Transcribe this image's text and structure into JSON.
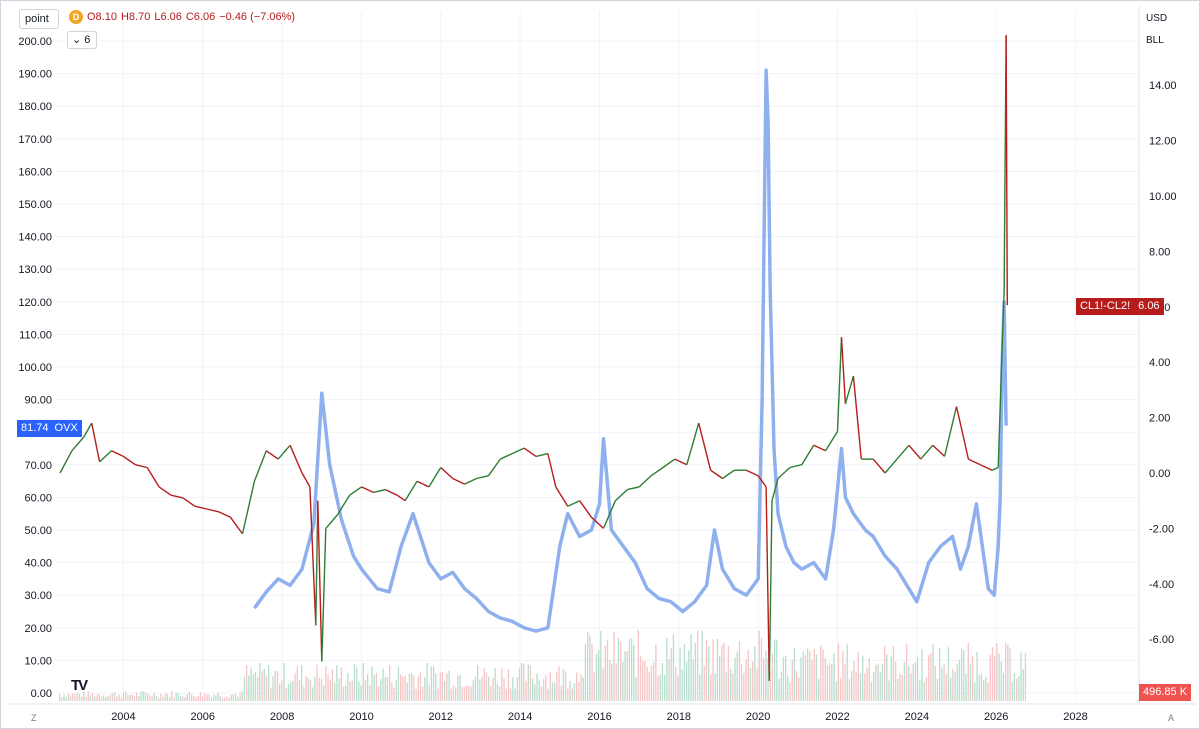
{
  "header": {
    "unit_label": "point",
    "interval_badge": "D",
    "open": "O8.10",
    "high": "H8.70",
    "low": "L6.06",
    "close": "C6.06",
    "change": "−0.46 (−7.06%)",
    "collapse_label": "6"
  },
  "right_scale": {
    "currency": "USD",
    "unit": "BLL"
  },
  "tags": {
    "ovx_value": "81.74",
    "ovx_name": "OVX",
    "spread_name": "CL1!-CL2!",
    "spread_value": "6.06",
    "volume_value": "496.85 K"
  },
  "logo_text": "TV",
  "corner_left": "Z",
  "corner_right": "A",
  "colors": {
    "ovx": "#8fb0ee",
    "spread_up": "#2e7d32",
    "spread_down": "#b71c1c",
    "vol_up": "#a5d6c3",
    "vol_down": "#f4b6b6",
    "grid": "#f0f3fa"
  },
  "chart_data": {
    "type": "line",
    "x_range": [
      2002.3,
      2029.6
    ],
    "x_ticks": [
      "2004",
      "2006",
      "2008",
      "2010",
      "2012",
      "2014",
      "2016",
      "2018",
      "2020",
      "2022",
      "2024",
      "2026",
      "2028"
    ],
    "x_tick_values": [
      2004,
      2006,
      2008,
      2010,
      2012,
      2014,
      2016,
      2018,
      2020,
      2022,
      2024,
      2026,
      2028
    ],
    "left_axis": {
      "ticks": [
        "0.00",
        "10.00",
        "20.00",
        "30.00",
        "40.00",
        "50.00",
        "60.00",
        "70.00",
        "80.00",
        "90.00",
        "100.00",
        "110.00",
        "120.00",
        "130.00",
        "140.00",
        "150.00",
        "160.00",
        "170.00",
        "180.00",
        "190.00",
        "200.00"
      ],
      "tick_values": [
        0,
        10,
        20,
        30,
        40,
        50,
        60,
        70,
        80,
        90,
        100,
        110,
        120,
        130,
        140,
        150,
        160,
        170,
        180,
        190,
        200
      ]
    },
    "right_axis": {
      "ticks": [
        "-6.00",
        "-4.00",
        "-2.00",
        "0.00",
        "2.00",
        "4.00",
        "6.00",
        "8.00",
        "10.00",
        "12.00",
        "14.00"
      ],
      "tick_values": [
        -6,
        -4,
        -2,
        0,
        2,
        4,
        6,
        8,
        10,
        12,
        14
      ]
    },
    "series": [
      {
        "name": "OVX",
        "axis": "left",
        "x": [
          2007.3,
          2007.6,
          2007.9,
          2008.2,
          2008.5,
          2008.8,
          2009.0,
          2009.2,
          2009.5,
          2009.8,
          2010.0,
          2010.4,
          2010.7,
          2011.0,
          2011.3,
          2011.7,
          2012.0,
          2012.3,
          2012.6,
          2012.9,
          2013.2,
          2013.5,
          2013.8,
          2014.1,
          2014.4,
          2014.7,
          2015.0,
          2015.2,
          2015.5,
          2015.8,
          2016.0,
          2016.1,
          2016.3,
          2016.6,
          2016.9,
          2017.2,
          2017.5,
          2017.8,
          2018.1,
          2018.4,
          2018.7,
          2018.9,
          2019.1,
          2019.4,
          2019.7,
          2020.0,
          2020.1,
          2020.2,
          2020.25,
          2020.3,
          2020.4,
          2020.5,
          2020.7,
          2020.9,
          2021.1,
          2021.4,
          2021.7,
          2021.9,
          2022.1,
          2022.2,
          2022.4,
          2022.7,
          2022.9,
          2023.2,
          2023.5,
          2023.8,
          2024.0,
          2024.3,
          2024.6,
          2024.9,
          2025.1,
          2025.3,
          2025.5,
          2025.8,
          2025.95,
          2026.05,
          2026.1,
          2026.15,
          2026.2,
          2026.25
        ],
        "values": [
          26,
          31,
          35,
          33,
          38,
          52,
          92,
          70,
          53,
          42,
          38,
          32,
          31,
          45,
          55,
          40,
          35,
          37,
          32,
          29,
          25,
          23,
          22,
          20,
          19,
          20,
          45,
          55,
          48,
          50,
          58,
          78,
          50,
          45,
          40,
          32,
          29,
          28,
          25,
          28,
          33,
          50,
          38,
          32,
          30,
          35,
          90,
          191,
          175,
          125,
          75,
          55,
          45,
          40,
          38,
          40,
          35,
          50,
          75,
          60,
          55,
          50,
          48,
          42,
          38,
          32,
          28,
          40,
          45,
          48,
          38,
          45,
          58,
          32,
          30,
          45,
          60,
          100,
          120,
          82
        ]
      },
      {
        "name": "CL1!-CL2!",
        "axis": "right",
        "x": [
          2002.4,
          2002.7,
          2003.0,
          2003.2,
          2003.4,
          2003.7,
          2004.0,
          2004.3,
          2004.6,
          2004.9,
          2005.2,
          2005.5,
          2005.8,
          2006.1,
          2006.4,
          2006.7,
          2007.0,
          2007.3,
          2007.6,
          2007.9,
          2008.2,
          2008.5,
          2008.7,
          2008.85,
          2008.9,
          2009.0,
          2009.1,
          2009.4,
          2009.7,
          2010.0,
          2010.3,
          2010.6,
          2010.9,
          2011.1,
          2011.4,
          2011.7,
          2012.0,
          2012.3,
          2012.6,
          2012.9,
          2013.2,
          2013.5,
          2013.8,
          2014.1,
          2014.4,
          2014.7,
          2014.9,
          2015.2,
          2015.5,
          2015.8,
          2016.1,
          2016.4,
          2016.7,
          2017.0,
          2017.3,
          2017.6,
          2017.9,
          2018.2,
          2018.5,
          2018.8,
          2019.1,
          2019.4,
          2019.7,
          2020.0,
          2020.2,
          2020.28,
          2020.35,
          2020.5,
          2020.8,
          2021.1,
          2021.4,
          2021.7,
          2022.0,
          2022.1,
          2022.2,
          2022.4,
          2022.6,
          2022.9,
          2023.2,
          2023.5,
          2023.8,
          2024.1,
          2024.4,
          2024.7,
          2025.0,
          2025.3,
          2025.6,
          2025.9,
          2026.05,
          2026.15,
          2026.2,
          2026.25,
          2026.28
        ],
        "values": [
          0,
          0.8,
          1.3,
          1.8,
          0.4,
          0.8,
          0.6,
          0.3,
          0.2,
          -0.5,
          -0.8,
          -0.9,
          -1.2,
          -1.3,
          -1.4,
          -1.6,
          -2.2,
          -0.3,
          0.8,
          0.5,
          1.0,
          0,
          -0.5,
          -5.5,
          -1.0,
          -6.8,
          -2.0,
          -1.5,
          -0.8,
          -0.5,
          -0.7,
          -0.6,
          -0.8,
          -1.0,
          -0.3,
          -0.5,
          0.2,
          -0.2,
          -0.4,
          -0.2,
          -0.1,
          0.5,
          0.7,
          0.9,
          0.6,
          0.7,
          -0.5,
          -1.2,
          -1.0,
          -1.6,
          -2.0,
          -1.0,
          -0.6,
          -0.5,
          -0.1,
          0.2,
          0.5,
          0.3,
          1.8,
          0.1,
          -0.2,
          0.1,
          0.1,
          -0.1,
          -0.5,
          -7.5,
          -1.0,
          -0.2,
          0.2,
          0.3,
          1.0,
          0.8,
          1.5,
          4.9,
          2.5,
          3.5,
          0.5,
          0.5,
          0,
          0.5,
          1.0,
          0.5,
          1.0,
          0.6,
          2.4,
          0.5,
          0.3,
          0.1,
          0.2,
          4.5,
          6.5,
          15.8,
          6.06
        ]
      }
    ],
    "volume": {
      "last": "496.85 K"
    },
    "legend": "none",
    "grid": true
  }
}
